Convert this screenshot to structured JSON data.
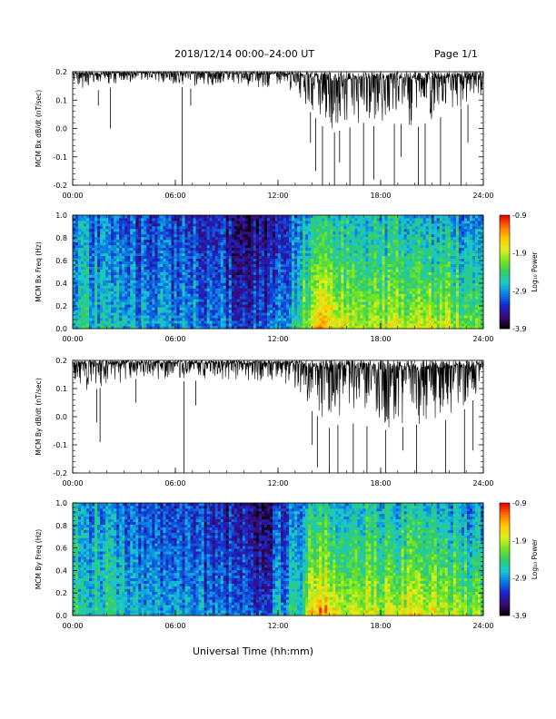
{
  "header": {
    "title": "2018/12/14  00:00–24:00 UT",
    "page": "Page 1/1"
  },
  "xlabel": "Universal Time (hh:mm)",
  "colorbar": {
    "label": "Log₁₀ Power",
    "ticks": [
      "-0.9",
      "-1.9",
      "-2.9",
      "-3.9"
    ],
    "range": [
      -3.9,
      -0.9
    ],
    "colormap": [
      "#000000",
      "#3a0a6e",
      "#1b23c8",
      "#0a78e6",
      "#19c8d2",
      "#32cc64",
      "#78e61e",
      "#dcf01e",
      "#ffc800",
      "#ff6e00",
      "#e60000"
    ]
  },
  "chart_data": [
    {
      "type": "line",
      "ylabel": "MCM Bx dB/dt (nT/sec)",
      "xlim": [
        "00:00",
        "24:00"
      ],
      "ylim": [
        -0.2,
        0.2
      ],
      "xticks": [
        "00:00",
        "06:00",
        "12:00",
        "18:00",
        "24:00"
      ],
      "yticks": [
        "0.2",
        "0.1",
        "0.0",
        "-0.1",
        "-0.2"
      ],
      "x_hours": [
        0,
        1,
        2,
        3,
        4,
        5,
        6,
        7,
        8,
        9,
        10,
        11,
        12,
        13,
        14,
        15,
        16,
        17,
        18,
        19,
        20,
        21,
        22,
        23,
        24
      ],
      "envelope_upper": [
        0.2,
        0.2,
        0.2,
        0.2,
        0.2,
        0.2,
        0.2,
        0.2,
        0.2,
        0.2,
        0.2,
        0.2,
        0.2,
        0.2,
        0.2,
        0.2,
        0.2,
        0.2,
        0.2,
        0.2,
        0.2,
        0.2,
        0.2,
        0.2,
        0.2
      ],
      "envelope_lower": [
        0.15,
        0.13,
        0.14,
        0.16,
        0.17,
        0.16,
        0.15,
        0.14,
        0.15,
        0.16,
        0.15,
        0.14,
        0.15,
        0.12,
        0.05,
        -0.02,
        0.0,
        0.02,
        0.0,
        0.02,
        0.0,
        0.03,
        0.05,
        0.08,
        0.12
      ],
      "spikes": [
        [
          1.5,
          0.08
        ],
        [
          2.2,
          0.0
        ],
        [
          6.4,
          -0.2
        ],
        [
          6.9,
          0.08
        ],
        [
          13.9,
          -0.05
        ],
        [
          14.2,
          -0.15
        ],
        [
          14.6,
          -0.2
        ],
        [
          15.3,
          -0.2
        ],
        [
          15.6,
          -0.12
        ],
        [
          16.2,
          -0.2
        ],
        [
          17.0,
          -0.2
        ],
        [
          17.6,
          -0.18
        ],
        [
          18.8,
          -0.2
        ],
        [
          19.2,
          -0.1
        ],
        [
          20.2,
          -0.2
        ],
        [
          20.6,
          -0.2
        ],
        [
          21.5,
          -0.2
        ],
        [
          22.7,
          -0.2
        ],
        [
          23.1,
          -0.05
        ]
      ]
    },
    {
      "type": "heatmap",
      "ylabel": "MCM Bx Freq (Hz)",
      "xlim": [
        "00:00",
        "24:00"
      ],
      "ylim": [
        0.0,
        1.0
      ],
      "xticks": [
        "00:00",
        "06:00",
        "12:00",
        "18:00",
        "24:00"
      ],
      "yticks": [
        "1.0",
        "0.8",
        "0.6",
        "0.4",
        "0.2",
        "0.0"
      ],
      "x_hours": [
        0,
        2,
        4,
        6,
        8,
        9,
        10,
        11,
        12,
        13,
        14,
        14.5,
        15,
        16,
        17,
        18,
        19,
        20,
        21,
        22,
        23,
        24
      ],
      "low_freq_log_power": [
        -2.6,
        -2.6,
        -2.8,
        -2.8,
        -2.9,
        -3.0,
        -3.1,
        -3.1,
        -2.8,
        -2.6,
        -1.6,
        -1.1,
        -1.4,
        -1.8,
        -1.9,
        -1.9,
        -1.8,
        -1.8,
        -1.7,
        -1.9,
        -2.0,
        -2.2
      ],
      "high_freq_log_power": [
        -2.9,
        -3.0,
        -3.2,
        -3.2,
        -3.3,
        -3.4,
        -3.5,
        -3.6,
        -3.3,
        -3.0,
        -2.6,
        -2.5,
        -2.6,
        -2.7,
        -2.8,
        -2.7,
        -2.7,
        -2.8,
        -2.8,
        -2.8,
        -2.9,
        -3.0
      ]
    },
    {
      "type": "line",
      "ylabel": "MCM By dB/dt (nT/sec)",
      "xlim": [
        "00:00",
        "24:00"
      ],
      "ylim": [
        -0.2,
        0.2
      ],
      "xticks": [
        "00:00",
        "06:00",
        "12:00",
        "18:00",
        "24:00"
      ],
      "yticks": [
        "0.2",
        "0.1",
        "0.0",
        "-0.1",
        "-0.2"
      ],
      "x_hours": [
        0,
        1,
        2,
        3,
        4,
        5,
        6,
        7,
        8,
        9,
        10,
        11,
        12,
        13,
        14,
        15,
        16,
        17,
        18,
        19,
        20,
        21,
        22,
        23,
        24
      ],
      "envelope_upper": [
        0.2,
        0.2,
        0.2,
        0.2,
        0.2,
        0.2,
        0.2,
        0.2,
        0.2,
        0.2,
        0.2,
        0.2,
        0.2,
        0.2,
        0.2,
        0.2,
        0.2,
        0.2,
        0.2,
        0.2,
        0.2,
        0.2,
        0.2,
        0.2,
        0.2
      ],
      "envelope_lower": [
        0.1,
        0.09,
        0.11,
        0.12,
        0.14,
        0.13,
        0.12,
        0.13,
        0.12,
        0.13,
        0.12,
        0.12,
        0.12,
        0.08,
        0.02,
        -0.04,
        -0.02,
        -0.03,
        -0.05,
        -0.04,
        -0.03,
        -0.02,
        -0.01,
        0.03,
        0.1
      ],
      "spikes": [
        [
          1.4,
          -0.02
        ],
        [
          1.6,
          -0.09
        ],
        [
          3.7,
          0.05
        ],
        [
          6.5,
          -0.2
        ],
        [
          7.2,
          0.04
        ],
        [
          14.0,
          -0.1
        ],
        [
          14.3,
          -0.18
        ],
        [
          15.0,
          -0.2
        ],
        [
          15.5,
          -0.2
        ],
        [
          16.4,
          -0.2
        ],
        [
          17.2,
          -0.2
        ],
        [
          18.3,
          -0.2
        ],
        [
          19.3,
          -0.12
        ],
        [
          20.1,
          -0.2
        ],
        [
          21.8,
          -0.2
        ],
        [
          22.9,
          -0.2
        ],
        [
          23.4,
          -0.12
        ]
      ]
    },
    {
      "type": "heatmap",
      "ylabel": "MCM By Freq (Hz)",
      "xlim": [
        "00:00",
        "24:00"
      ],
      "ylim": [
        0.0,
        1.0
      ],
      "xticks": [
        "00:00",
        "06:00",
        "12:00",
        "18:00",
        "24:00"
      ],
      "yticks": [
        "1.0",
        "0.8",
        "0.6",
        "0.4",
        "0.2",
        "0.0"
      ],
      "x_hours": [
        0,
        2,
        4,
        6,
        8,
        9,
        10,
        11,
        12,
        13,
        14,
        14.5,
        15,
        16,
        17,
        18,
        19,
        20,
        21,
        22,
        23,
        24
      ],
      "low_freq_log_power": [
        -2.5,
        -2.5,
        -2.7,
        -2.8,
        -2.9,
        -3.0,
        -3.1,
        -3.1,
        -2.8,
        -2.6,
        -1.6,
        -1.1,
        -1.4,
        -1.7,
        -1.8,
        -1.8,
        -1.7,
        -1.7,
        -1.7,
        -1.8,
        -1.9,
        -2.1
      ],
      "high_freq_log_power": [
        -2.8,
        -2.9,
        -3.1,
        -3.2,
        -3.3,
        -3.4,
        -3.5,
        -3.6,
        -3.3,
        -3.0,
        -2.6,
        -2.5,
        -2.6,
        -2.7,
        -2.7,
        -2.7,
        -2.7,
        -2.7,
        -2.7,
        -2.8,
        -2.9,
        -3.0
      ]
    }
  ]
}
